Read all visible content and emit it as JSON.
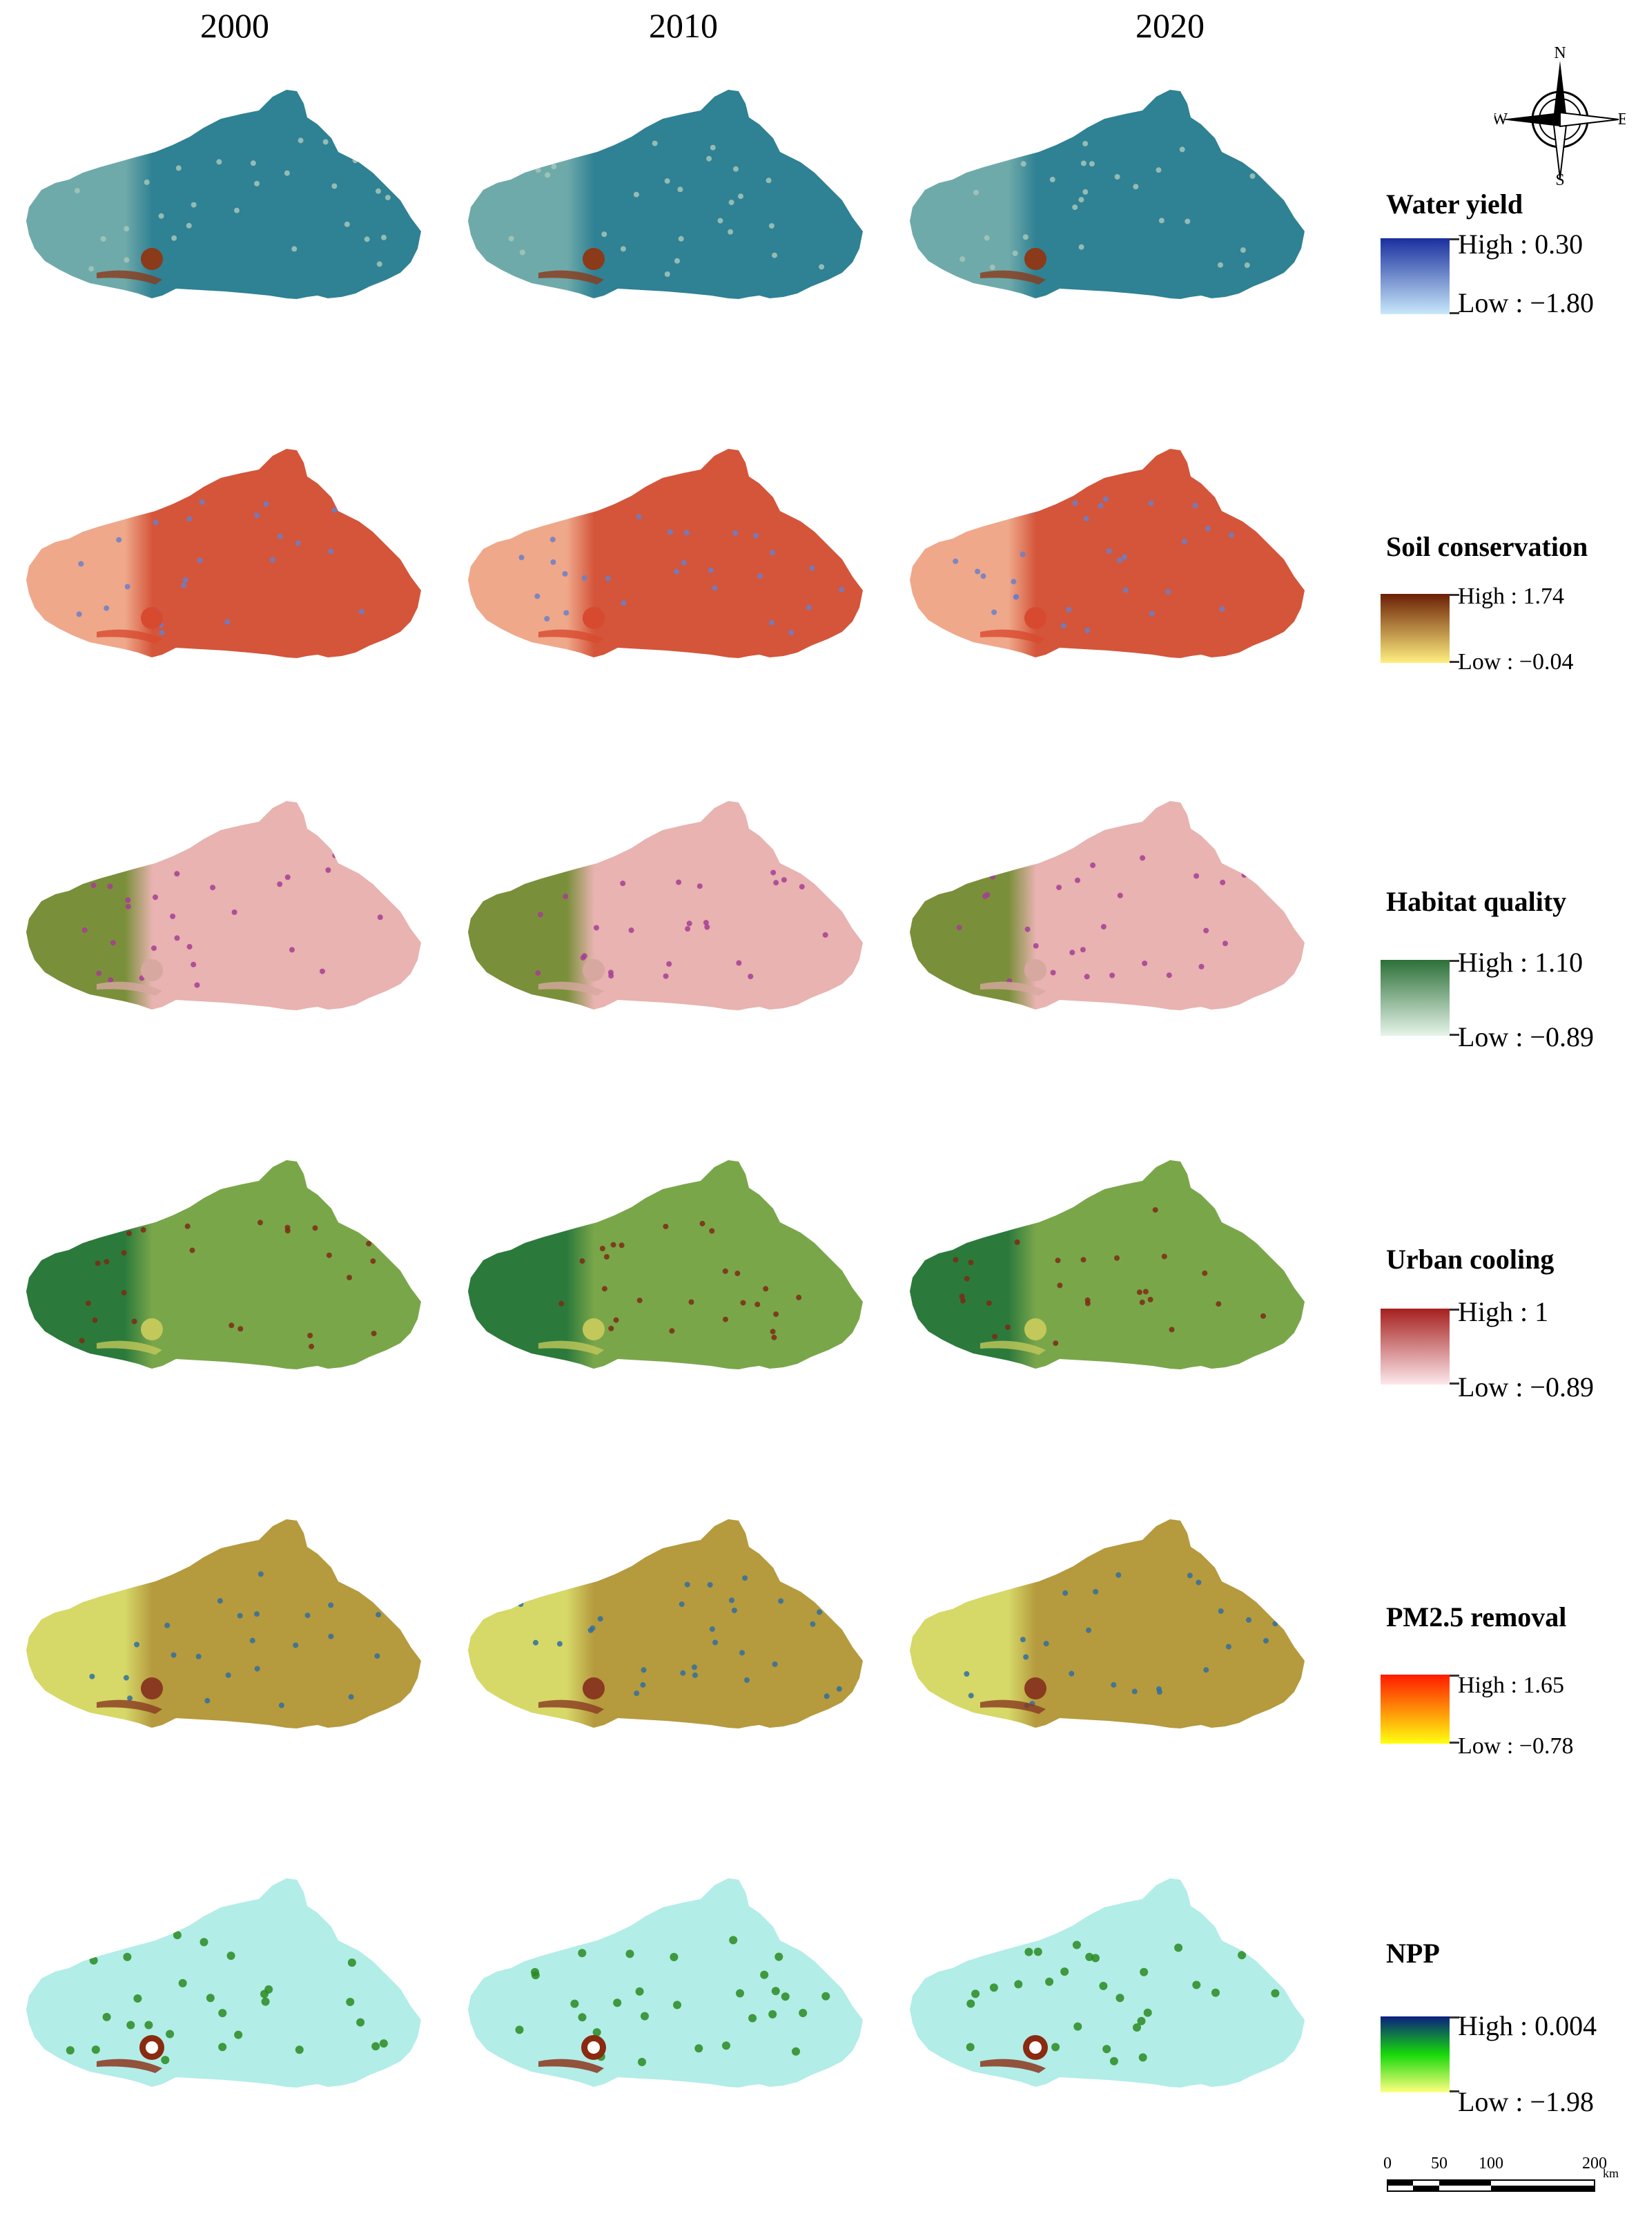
{
  "years": [
    "2000",
    "2010",
    "2020"
  ],
  "compass": {
    "n": "N",
    "s": "S",
    "e": "E",
    "w": "W"
  },
  "rows": [
    {
      "title": "Water yield",
      "high_text": "High : 0.30",
      "low_text": "Low : −1.80",
      "legend_colors": [
        "#1a2f9e",
        "#c8e8fa"
      ],
      "map_colors": [
        "#2f8194",
        "#6faaaa",
        "#a6c7b8",
        "#8b3a1a"
      ]
    },
    {
      "title": "Soil conservation",
      "high_text": "High : 1.74",
      "low_text": "Low : −0.04",
      "legend_colors": [
        "#6b1f05",
        "#ffef80"
      ],
      "map_colors": [
        "#d4553a",
        "#efa88a",
        "#6a7fc9",
        "#d84a30"
      ]
    },
    {
      "title": "Habitat quality",
      "high_text": "High  :  1.10",
      "low_text": "Low  : −0.89",
      "legend_colors": [
        "#2c7038",
        "#e6f4ea"
      ],
      "map_colors": [
        "#e8b3b0",
        "#7a8f3a",
        "#a63d95",
        "#d7a8a0"
      ]
    },
    {
      "title": "Urban cooling",
      "high_text": "High : 1",
      "low_text": "Low  : −0.89",
      "legend_colors": [
        "#a5201e",
        "#fde8ec"
      ],
      "map_colors": [
        "#7aa64a",
        "#2b7a3c",
        "#7d2a14",
        "#c2c85a"
      ]
    },
    {
      "title": "PM2.5 removal",
      "high_text": "High  : 1.65",
      "low_text": "Low : −0.78",
      "legend_colors": [
        "#ff1a00",
        "#ffff10"
      ],
      "map_colors": [
        "#b59a3e",
        "#d6d868",
        "#2f6ea0",
        "#8a3a20"
      ]
    },
    {
      "title": "NPP",
      "high_text": "High  :  0.004",
      "low_text": "Low  : −1.98",
      "legend_colors": [
        "#0a1f80",
        "#17d90a",
        "#ffff80"
      ],
      "map_colors": [
        "#b2ede8",
        "#b2ede8",
        "#2a8a20",
        "#8a2a10"
      ]
    }
  ],
  "scale": {
    "labels": [
      "0",
      "50",
      "100",
      "200"
    ],
    "unit": "km"
  }
}
